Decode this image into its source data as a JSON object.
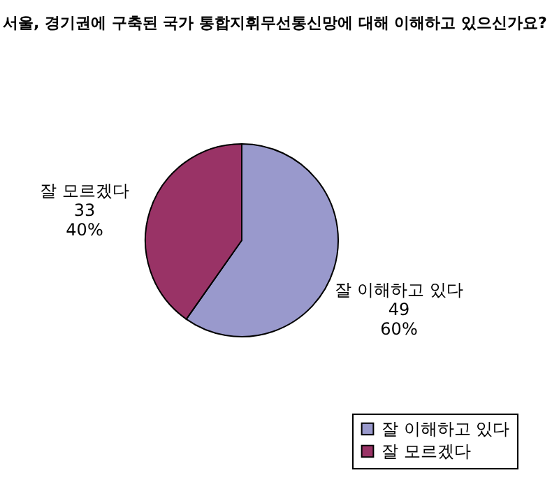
{
  "chart_data": {
    "type": "pie",
    "title": "서울, 경기권에 구축된 국가 통합지휘무선통신망에 대해 이해하고 있으신가요?",
    "categories": [
      "잘 이해하고 있다",
      "잘 모르겠다"
    ],
    "values": [
      49,
      33
    ],
    "value_labels": [
      "49\n60%",
      "33\n40%"
    ],
    "colors": [
      "#9999cc",
      "#993366"
    ],
    "legend": "bottom right"
  }
}
